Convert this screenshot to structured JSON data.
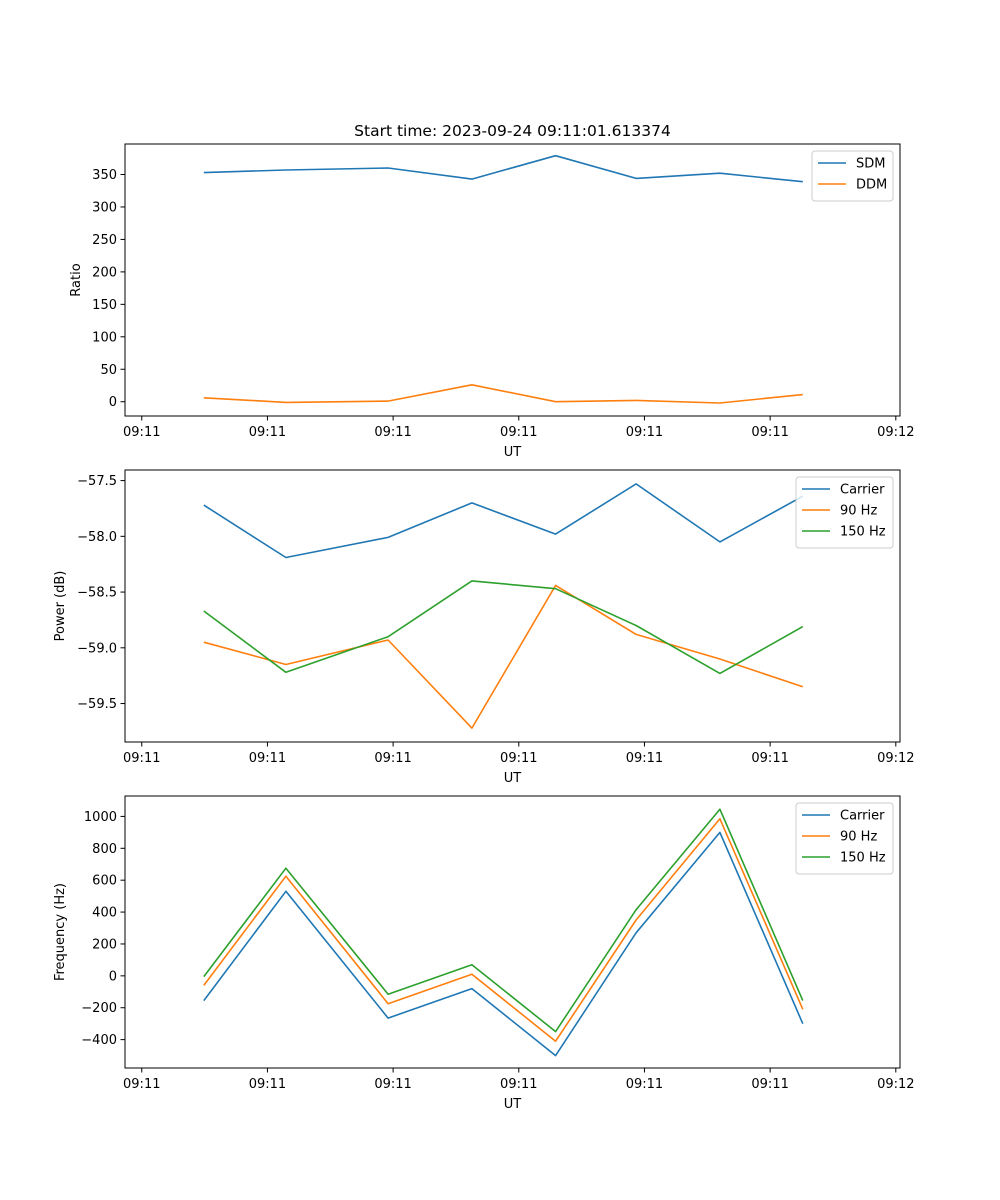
{
  "colors": {
    "series_blue": "#1f77b4",
    "series_orange": "#ff7f0e",
    "series_green": "#2ca02c",
    "axes": "#000000",
    "legend_border": "#cccccc",
    "background": "#ffffff"
  },
  "chart_data": [
    {
      "type": "line",
      "title": "Start time: 2023-09-24 09:11:01.613374",
      "xlabel": "UT",
      "ylabel": "Ratio",
      "xlim": [
        -0.5,
        8.75
      ],
      "ylim": [
        -22,
        397
      ],
      "x_ticks": [
        {
          "value": -0.3,
          "label": "09:11"
        },
        {
          "value": 1.2,
          "label": "09:11"
        },
        {
          "value": 2.7,
          "label": "09:11"
        },
        {
          "value": 4.2,
          "label": "09:11"
        },
        {
          "value": 5.7,
          "label": "09:11"
        },
        {
          "value": 7.2,
          "label": "09:11"
        },
        {
          "value": 8.7,
          "label": "09:12"
        }
      ],
      "y_ticks": [
        {
          "value": 0,
          "label": "0"
        },
        {
          "value": 50,
          "label": "50"
        },
        {
          "value": 100,
          "label": "100"
        },
        {
          "value": 150,
          "label": "150"
        },
        {
          "value": 200,
          "label": "200"
        },
        {
          "value": 250,
          "label": "250"
        },
        {
          "value": 300,
          "label": "300"
        },
        {
          "value": 350,
          "label": "350"
        }
      ],
      "x": [
        0.44,
        1.42,
        2.64,
        3.64,
        4.64,
        5.6,
        6.6,
        7.59
      ],
      "series": [
        {
          "name": "SDM",
          "color": "#1f77b4",
          "values": [
            353,
            357,
            360,
            343,
            379,
            344,
            352,
            339
          ]
        },
        {
          "name": "DDM",
          "color": "#ff7f0e",
          "values": [
            6,
            -1,
            1,
            26,
            0,
            2,
            -2,
            11
          ]
        }
      ],
      "legend": "top-right"
    },
    {
      "type": "line",
      "title": "",
      "xlabel": "UT",
      "ylabel": "Power (dB)",
      "xlim": [
        -0.5,
        8.75
      ],
      "ylim": [
        -59.845,
        -57.405
      ],
      "x_ticks": [
        {
          "value": -0.3,
          "label": "09:11"
        },
        {
          "value": 1.2,
          "label": "09:11"
        },
        {
          "value": 2.7,
          "label": "09:11"
        },
        {
          "value": 4.2,
          "label": "09:11"
        },
        {
          "value": 5.7,
          "label": "09:11"
        },
        {
          "value": 7.2,
          "label": "09:11"
        },
        {
          "value": 8.7,
          "label": "09:12"
        }
      ],
      "y_ticks": [
        {
          "value": -59.5,
          "label": "−59.5"
        },
        {
          "value": -59.0,
          "label": "−59.0"
        },
        {
          "value": -58.5,
          "label": "−58.5"
        },
        {
          "value": -58.0,
          "label": "−58.0"
        },
        {
          "value": -57.5,
          "label": "−57.5"
        }
      ],
      "x": [
        0.44,
        1.42,
        2.64,
        3.64,
        4.64,
        5.6,
        6.6,
        7.59
      ],
      "series": [
        {
          "name": "Carrier",
          "color": "#1f77b4",
          "values": [
            -57.72,
            -58.19,
            -58.01,
            -57.7,
            -57.98,
            -57.53,
            -58.05,
            -57.64
          ]
        },
        {
          "name": "90 Hz",
          "color": "#ff7f0e",
          "values": [
            -58.95,
            -59.15,
            -58.93,
            -59.72,
            -58.44,
            -58.88,
            -59.1,
            -59.35
          ]
        },
        {
          "name": "150 Hz",
          "color": "#2ca02c",
          "values": [
            -58.67,
            -59.22,
            -58.9,
            -58.4,
            -58.47,
            -58.8,
            -59.23,
            -58.81
          ]
        }
      ],
      "legend": "top-right"
    },
    {
      "type": "line",
      "title": "",
      "xlabel": "UT",
      "ylabel": "Frequency (Hz)",
      "xlim": [
        -0.5,
        8.75
      ],
      "ylim": [
        -578,
        1128
      ],
      "x_ticks": [
        {
          "value": -0.3,
          "label": "09:11"
        },
        {
          "value": 1.2,
          "label": "09:11"
        },
        {
          "value": 2.7,
          "label": "09:11"
        },
        {
          "value": 4.2,
          "label": "09:11"
        },
        {
          "value": 5.7,
          "label": "09:11"
        },
        {
          "value": 7.2,
          "label": "09:11"
        },
        {
          "value": 8.7,
          "label": "09:12"
        }
      ],
      "y_ticks": [
        {
          "value": -400,
          "label": "−400"
        },
        {
          "value": -200,
          "label": "−200"
        },
        {
          "value": 0,
          "label": "0"
        },
        {
          "value": 200,
          "label": "200"
        },
        {
          "value": 400,
          "label": "400"
        },
        {
          "value": 600,
          "label": "600"
        },
        {
          "value": 800,
          "label": "800"
        },
        {
          "value": 1000,
          "label": "1000"
        }
      ],
      "x": [
        0.44,
        1.42,
        2.64,
        3.64,
        4.64,
        5.6,
        6.6,
        7.59
      ],
      "series": [
        {
          "name": "Carrier",
          "color": "#1f77b4",
          "values": [
            -155,
            530,
            -265,
            -80,
            -500,
            270,
            900,
            -300
          ]
        },
        {
          "name": "90 Hz",
          "color": "#ff7f0e",
          "values": [
            -60,
            625,
            -175,
            10,
            -410,
            350,
            985,
            -210
          ]
        },
        {
          "name": "150 Hz",
          "color": "#2ca02c",
          "values": [
            -5,
            675,
            -115,
            70,
            -350,
            415,
            1045,
            -155
          ]
        }
      ],
      "legend": "top-right"
    }
  ]
}
